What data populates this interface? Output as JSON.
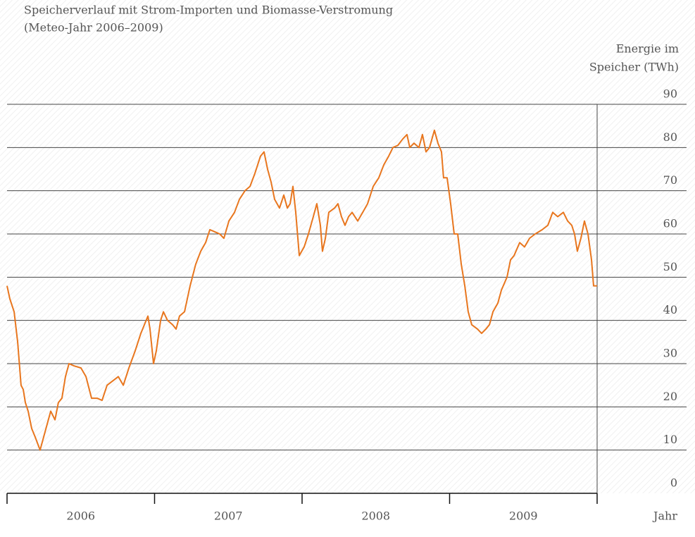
{
  "chart_data": {
    "type": "line",
    "title": [
      "Speicherverlauf mit Strom-Importen und Biomasse-Verstromung",
      "(Meteo-Jahr 2006–2009)"
    ],
    "y_label": [
      "Energie im",
      "Speicher (TWh)"
    ],
    "x_label": "Jahr",
    "categories": [
      "2006",
      "2007",
      "2008",
      "2009"
    ],
    "xlim": [
      2006,
      2010
    ],
    "ylim": [
      0,
      90
    ],
    "yticks": [
      0,
      10,
      20,
      30,
      40,
      50,
      60,
      70,
      80,
      90
    ],
    "grid": true,
    "series": [
      {
        "color": "#e8761e",
        "x": [
          2006.0,
          2006.019,
          2006.048,
          2006.072,
          2006.095,
          2006.11,
          2006.124,
          2006.143,
          2006.167,
          2006.191,
          2006.224,
          2006.248,
          2006.272,
          2006.296,
          2006.325,
          2006.348,
          2006.372,
          2006.396,
          2006.42,
          2006.453,
          2006.501,
          2006.535,
          2006.573,
          2006.611,
          2006.644,
          2006.678,
          2006.716,
          2006.754,
          2006.788,
          2006.826,
          2006.869,
          2006.907,
          2006.955,
          2006.969,
          2006.993,
          2007.012,
          2007.041,
          2007.06,
          2007.088,
          2007.122,
          2007.146,
          2007.169,
          2007.203,
          2007.241,
          2007.279,
          2007.313,
          2007.346,
          2007.375,
          2007.408,
          2007.442,
          2007.47,
          2007.504,
          2007.542,
          2007.575,
          2007.613,
          2007.647,
          2007.68,
          2007.718,
          2007.742,
          2007.766,
          2007.79,
          2007.814,
          2007.847,
          2007.876,
          2007.9,
          2007.919,
          2007.938,
          2007.957,
          2007.981,
          2008.014,
          2008.043,
          2008.076,
          2008.1,
          2008.124,
          2008.138,
          2008.158,
          2008.181,
          2008.22,
          2008.243,
          2008.267,
          2008.291,
          2008.315,
          2008.339,
          2008.377,
          2008.411,
          2008.444,
          2008.482,
          2008.52,
          2008.554,
          2008.587,
          2008.616,
          2008.649,
          2008.683,
          2008.711,
          2008.73,
          2008.759,
          2008.792,
          2008.816,
          2008.84,
          2008.864,
          2008.897,
          2008.921,
          2008.945,
          2008.959,
          2008.983,
          2009.007,
          2009.031,
          2009.055,
          2009.079,
          2009.103,
          2009.126,
          2009.15,
          2009.189,
          2009.217,
          2009.246,
          2009.27,
          2009.294,
          2009.327,
          2009.351,
          2009.389,
          2009.413,
          2009.437,
          2009.475,
          2009.508,
          2009.542,
          2009.58,
          2009.628,
          2009.666,
          2009.699,
          2009.733,
          2009.771,
          2009.8,
          2009.828,
          2009.847,
          2009.866,
          2009.89,
          2009.914,
          2009.938,
          2009.962,
          2009.976,
          2010.0
        ],
        "values": [
          48,
          45,
          42,
          35,
          25,
          24,
          21,
          19,
          15,
          13,
          10,
          13,
          16,
          19,
          17,
          21,
          22,
          27,
          30,
          29.5,
          29,
          27,
          22,
          22,
          21.5,
          25,
          26,
          27,
          25,
          29,
          33,
          37,
          41,
          38,
          30,
          33,
          40,
          42,
          40,
          39,
          38,
          41,
          42,
          48,
          53,
          56,
          58,
          61,
          60.5,
          60,
          59,
          63,
          65,
          68,
          70,
          71,
          74,
          78,
          79,
          75,
          72,
          68,
          66,
          69,
          66,
          67,
          71,
          65,
          55,
          57,
          60,
          64,
          67,
          62,
          56,
          59,
          65,
          66,
          67,
          64,
          62,
          64,
          65,
          63,
          65,
          67,
          71,
          73,
          76,
          78,
          80,
          80.5,
          82,
          83,
          80,
          81,
          80,
          83,
          79,
          80,
          84,
          81,
          79,
          73,
          73,
          67,
          60,
          60,
          53,
          48,
          42,
          39,
          38,
          37,
          38,
          39,
          42,
          44,
          47,
          50,
          54,
          55,
          58,
          57,
          59,
          60,
          61,
          62,
          65,
          64,
          65,
          63,
          62,
          60,
          56,
          59,
          63,
          60,
          54,
          48,
          48
        ]
      }
    ]
  }
}
